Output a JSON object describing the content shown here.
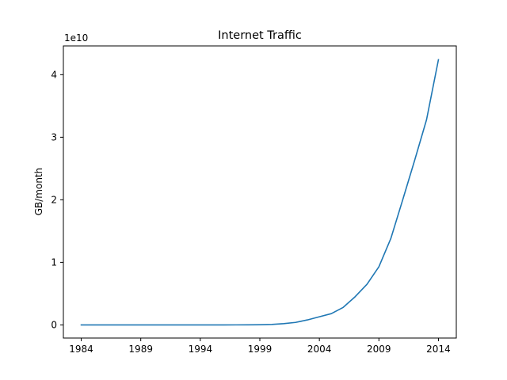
{
  "chart_data": {
    "type": "line",
    "title": "Internet Traffic",
    "xlabel": "",
    "ylabel": "GB/month",
    "y_offset_label": "1e10",
    "xlim": [
      1982.5,
      2015.5
    ],
    "ylim": [
      -0.21,
      4.46
    ],
    "x_ticks": [
      1984,
      1989,
      1994,
      1999,
      2004,
      2009,
      2014
    ],
    "x_tick_labels": [
      "1984",
      "1989",
      "1994",
      "1999",
      "2004",
      "2009",
      "2014"
    ],
    "y_ticks": [
      0,
      1,
      2,
      3,
      4
    ],
    "y_tick_labels": [
      "0",
      "1",
      "2",
      "3",
      "4"
    ],
    "grid": false,
    "series": [
      {
        "name": "Internet Traffic",
        "color": "#1f77b4",
        "x": [
          1984,
          1985,
          1986,
          1987,
          1988,
          1989,
          1990,
          1991,
          1992,
          1993,
          1994,
          1995,
          1996,
          1997,
          1998,
          1999,
          2000,
          2001,
          2002,
          2003,
          2004,
          2005,
          2006,
          2007,
          2008,
          2009,
          2010,
          2011,
          2012,
          2013,
          2014
        ],
        "y": [
          0,
          0,
          0,
          0,
          0,
          0,
          0,
          0,
          0,
          0,
          0,
          0,
          0.0002,
          0.0003,
          0.001,
          0.003,
          0.008,
          0.02,
          0.04,
          0.08,
          0.13,
          0.18,
          0.28,
          0.45,
          0.65,
          0.93,
          1.38,
          2.0,
          2.63,
          3.28,
          4.24
        ]
      }
    ]
  }
}
